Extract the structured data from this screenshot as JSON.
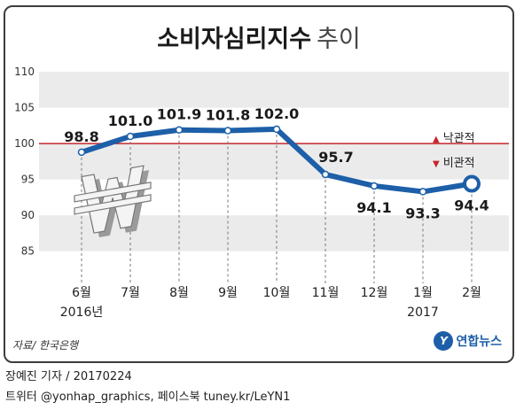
{
  "title": {
    "main": "소비자심리지수",
    "sub": "추이"
  },
  "legend": {
    "up": "낙관적",
    "down": "비관적",
    "up_symbol": "▲",
    "down_symbol": "▼"
  },
  "source": "자료/ 한국은행",
  "logo": {
    "badge": "Y",
    "text": "연합뉴스"
  },
  "footer": {
    "line1": "장예진 기자 / 20170224",
    "line2": "트위터 @yonhap_graphics, 페이스북 tuney.kr/LeYN1"
  },
  "colors": {
    "line": "#1d5fa8",
    "reference": "#c4262c",
    "band": "#ebebeb"
  },
  "chart_data": {
    "type": "line",
    "categories": [
      "6월",
      "7월",
      "8월",
      "9월",
      "10월",
      "11월",
      "12월",
      "1월",
      "2월"
    ],
    "year_labels": [
      "2016년",
      "",
      "",
      "",
      "",
      "",
      "",
      "2017",
      ""
    ],
    "values": [
      98.8,
      101.0,
      101.9,
      101.8,
      102.0,
      95.7,
      94.1,
      93.3,
      94.4
    ],
    "value_labels": [
      "98.8",
      "101.0",
      "101.9",
      "101.8",
      "102.0",
      "95.7",
      "94.1",
      "93.3",
      "94.4"
    ],
    "ylim": [
      82,
      111
    ],
    "yticks": [
      85,
      90,
      95,
      100,
      105,
      110
    ],
    "reference_line": 100,
    "grid": "alternating horizontal bands"
  }
}
